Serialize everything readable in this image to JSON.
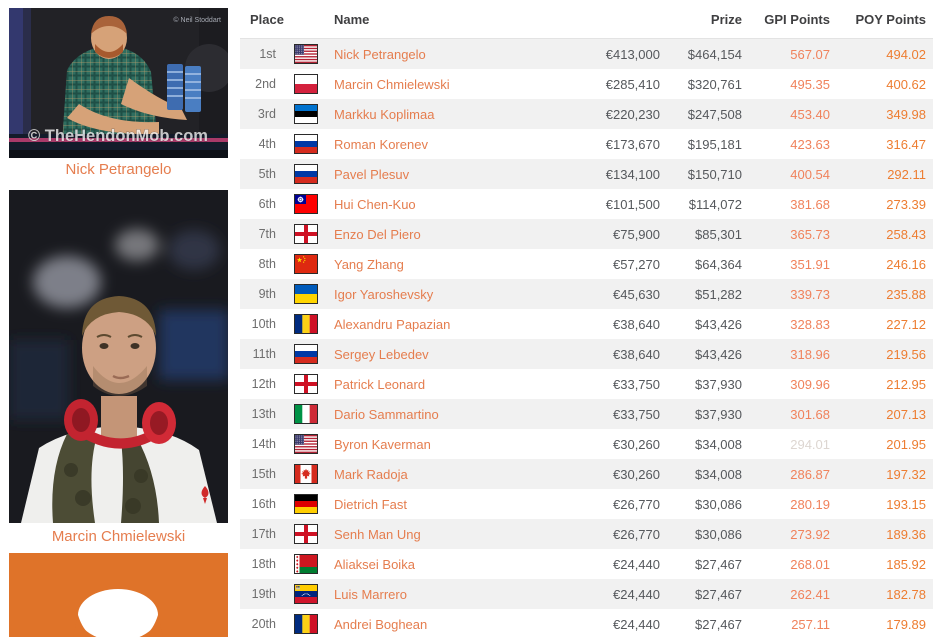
{
  "colors": {
    "link_orange": "#e57d4e",
    "gpi_orange": "#f0825c",
    "poy_orange": "#ed7d31",
    "gpi_muted": "#ddd6d1",
    "row_stripe": "#f1f1f1",
    "header_text": "#3f3f41",
    "place_text": "#6e6e6e",
    "prize_text": "#55585c",
    "avatar_orange": "#df7329"
  },
  "sidebar": {
    "players": [
      {
        "caption": "Nick Petrangelo",
        "watermark_top": "© Neil Stoddart",
        "watermark_bottom": "© TheHendonMob.com"
      },
      {
        "caption": "Marcin Chmielewski"
      },
      {
        "caption": ""
      }
    ]
  },
  "table": {
    "headers": {
      "place": "Place",
      "name": "Name",
      "prize": "Prize",
      "gpi": "GPI Points",
      "poy": "POY Points"
    },
    "rows": [
      {
        "place": "1st",
        "flag": "us",
        "country": "United States",
        "name": "Nick Petrangelo",
        "prize_eur": "€413,000",
        "prize_usd": "$464,154",
        "gpi": "567.07",
        "poy": "494.02"
      },
      {
        "place": "2nd",
        "flag": "pl",
        "country": "Poland",
        "name": "Marcin Chmielewski",
        "prize_eur": "€285,410",
        "prize_usd": "$320,761",
        "gpi": "495.35",
        "poy": "400.62"
      },
      {
        "place": "3rd",
        "flag": "ee",
        "country": "Estonia",
        "name": "Markku Koplimaa",
        "prize_eur": "€220,230",
        "prize_usd": "$247,508",
        "gpi": "453.40",
        "poy": "349.98"
      },
      {
        "place": "4th",
        "flag": "ru",
        "country": "Russia",
        "name": "Roman Korenev",
        "prize_eur": "€173,670",
        "prize_usd": "$195,181",
        "gpi": "423.63",
        "poy": "316.47"
      },
      {
        "place": "5th",
        "flag": "ru",
        "country": "Russia",
        "name": "Pavel Plesuv",
        "prize_eur": "€134,100",
        "prize_usd": "$150,710",
        "gpi": "400.54",
        "poy": "292.11"
      },
      {
        "place": "6th",
        "flag": "tw",
        "country": "Taiwan",
        "name": "Hui Chen-Kuo",
        "prize_eur": "€101,500",
        "prize_usd": "$114,072",
        "gpi": "381.68",
        "poy": "273.39"
      },
      {
        "place": "7th",
        "flag": "eng",
        "country": "England",
        "name": "Enzo Del Piero",
        "prize_eur": "€75,900",
        "prize_usd": "$85,301",
        "gpi": "365.73",
        "poy": "258.43"
      },
      {
        "place": "8th",
        "flag": "cn",
        "country": "China",
        "name": "Yang Zhang",
        "prize_eur": "€57,270",
        "prize_usd": "$64,364",
        "gpi": "351.91",
        "poy": "246.16"
      },
      {
        "place": "9th",
        "flag": "ua",
        "country": "Ukraine",
        "name": "Igor Yaroshevsky",
        "prize_eur": "€45,630",
        "prize_usd": "$51,282",
        "gpi": "339.73",
        "poy": "235.88"
      },
      {
        "place": "10th",
        "flag": "ro",
        "country": "Romania",
        "name": "Alexandru Papazian",
        "prize_eur": "€38,640",
        "prize_usd": "$43,426",
        "gpi": "328.83",
        "poy": "227.12"
      },
      {
        "place": "11th",
        "flag": "ru",
        "country": "Russia",
        "name": "Sergey Lebedev",
        "prize_eur": "€38,640",
        "prize_usd": "$43,426",
        "gpi": "318.96",
        "poy": "219.56"
      },
      {
        "place": "12th",
        "flag": "eng",
        "country": "England",
        "name": "Patrick Leonard",
        "prize_eur": "€33,750",
        "prize_usd": "$37,930",
        "gpi": "309.96",
        "poy": "212.95"
      },
      {
        "place": "13th",
        "flag": "it",
        "country": "Italy",
        "name": "Dario Sammartino",
        "prize_eur": "€33,750",
        "prize_usd": "$37,930",
        "gpi": "301.68",
        "poy": "207.13"
      },
      {
        "place": "14th",
        "flag": "us",
        "country": "United States",
        "name": "Byron Kaverman",
        "prize_eur": "€30,260",
        "prize_usd": "$34,008",
        "gpi": "294.01",
        "poy": "201.95",
        "gpi_muted": true
      },
      {
        "place": "15th",
        "flag": "ca",
        "country": "Canada",
        "name": "Mark Radoja",
        "prize_eur": "€30,260",
        "prize_usd": "$34,008",
        "gpi": "286.87",
        "poy": "197.32"
      },
      {
        "place": "16th",
        "flag": "de",
        "country": "Germany",
        "name": "Dietrich Fast",
        "prize_eur": "€26,770",
        "prize_usd": "$30,086",
        "gpi": "280.19",
        "poy": "193.15"
      },
      {
        "place": "17th",
        "flag": "eng",
        "country": "England",
        "name": "Senh Man Ung",
        "prize_eur": "€26,770",
        "prize_usd": "$30,086",
        "gpi": "273.92",
        "poy": "189.36"
      },
      {
        "place": "18th",
        "flag": "by",
        "country": "Belarus",
        "name": "Aliaksei Boika",
        "prize_eur": "€24,440",
        "prize_usd": "$27,467",
        "gpi": "268.01",
        "poy": "185.92"
      },
      {
        "place": "19th",
        "flag": "ve",
        "country": "Venezuela",
        "name": "Luis Marrero",
        "prize_eur": "€24,440",
        "prize_usd": "$27,467",
        "gpi": "262.41",
        "poy": "182.78"
      },
      {
        "place": "20th",
        "flag": "ro",
        "country": "Romania",
        "name": "Andrei Boghean",
        "prize_eur": "€24,440",
        "prize_usd": "$27,467",
        "gpi": "257.11",
        "poy": "179.89"
      }
    ]
  }
}
